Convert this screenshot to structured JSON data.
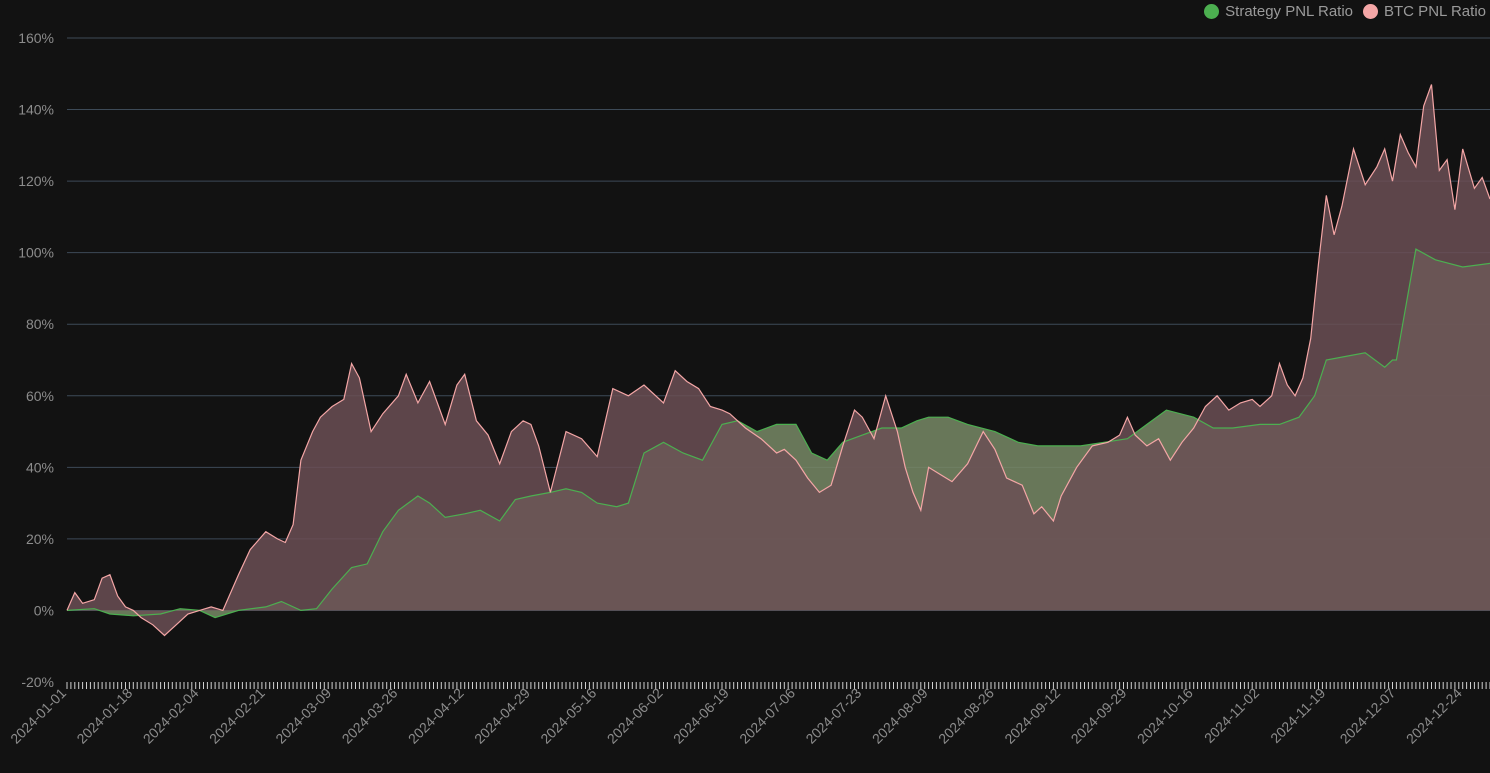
{
  "chart_data": {
    "type": "area",
    "title": "",
    "xlabel": "",
    "ylabel": "",
    "ylim": [
      -20,
      160
    ],
    "y_ticks": [
      -20,
      0,
      20,
      40,
      60,
      80,
      100,
      120,
      140,
      160
    ],
    "y_tick_labels": [
      "-20%",
      "0%",
      "20%",
      "40%",
      "60%",
      "80%",
      "100%",
      "120%",
      "140%",
      "160%"
    ],
    "x_range": [
      "2024-01-01",
      "2024-12-31"
    ],
    "x_tick_labels": [
      "2024-01-01",
      "2024-01-18",
      "2024-02-04",
      "2024-02-21",
      "2024-03-09",
      "2024-03-26",
      "2024-04-12",
      "2024-04-29",
      "2024-05-16",
      "2024-06-02",
      "2024-06-19",
      "2024-07-06",
      "2024-07-23",
      "2024-08-09",
      "2024-08-26",
      "2024-09-12",
      "2024-09-29",
      "2024-10-16",
      "2024-11-02",
      "2024-11-19",
      "2024-12-07",
      "2024-12-24"
    ],
    "grid": true,
    "legend_position": "top-right",
    "background": "#121212",
    "series": [
      {
        "name": "Strategy PNL Ratio",
        "color": "#4caf50",
        "fill": "#788a66",
        "x": [
          "2024-01-01",
          "2024-01-08",
          "2024-01-12",
          "2024-01-18",
          "2024-01-25",
          "2024-01-30",
          "2024-02-04",
          "2024-02-08",
          "2024-02-14",
          "2024-02-21",
          "2024-02-25",
          "2024-03-01",
          "2024-03-05",
          "2024-03-09",
          "2024-03-14",
          "2024-03-18",
          "2024-03-22",
          "2024-03-26",
          "2024-03-31",
          "2024-04-03",
          "2024-04-07",
          "2024-04-12",
          "2024-04-16",
          "2024-04-21",
          "2024-04-25",
          "2024-04-29",
          "2024-05-04",
          "2024-05-08",
          "2024-05-12",
          "2024-05-16",
          "2024-05-21",
          "2024-05-24",
          "2024-05-28",
          "2024-06-02",
          "2024-06-07",
          "2024-06-12",
          "2024-06-17",
          "2024-06-21",
          "2024-06-26",
          "2024-07-01",
          "2024-07-06",
          "2024-07-10",
          "2024-07-14",
          "2024-07-18",
          "2024-07-23",
          "2024-07-28",
          "2024-08-02",
          "2024-08-06",
          "2024-08-09",
          "2024-08-14",
          "2024-08-19",
          "2024-08-26",
          "2024-09-01",
          "2024-09-06",
          "2024-09-12",
          "2024-09-17",
          "2024-09-23",
          "2024-09-29",
          "2024-10-04",
          "2024-10-09",
          "2024-10-16",
          "2024-10-21",
          "2024-10-26",
          "2024-11-02",
          "2024-11-07",
          "2024-11-12",
          "2024-11-16",
          "2024-11-19",
          "2024-11-24",
          "2024-11-29",
          "2024-12-04",
          "2024-12-06",
          "2024-12-07",
          "2024-12-12",
          "2024-12-17",
          "2024-12-24",
          "2024-12-31"
        ],
        "values": [
          0,
          0.5,
          -1,
          -1.5,
          -1,
          0.5,
          0,
          -2,
          0,
          1,
          2.5,
          0,
          0.5,
          6,
          12,
          13,
          22,
          28,
          32,
          30,
          26,
          27,
          28,
          25,
          31,
          32,
          33,
          34,
          33,
          30,
          29,
          30,
          44,
          47,
          44,
          42,
          52,
          53,
          50,
          52,
          52,
          44,
          42,
          47,
          49,
          51,
          51,
          53,
          54,
          54,
          52,
          50,
          47,
          46,
          46,
          46,
          47,
          48,
          52,
          56,
          54,
          51,
          51,
          52,
          52,
          54,
          60,
          70,
          71,
          72,
          68,
          70,
          70,
          101,
          98,
          96,
          97
        ]
      },
      {
        "name": "BTC PNL Ratio",
        "color": "#f4a6a6",
        "fill": "#6b4f55",
        "x": [
          "2024-01-01",
          "2024-01-03",
          "2024-01-05",
          "2024-01-08",
          "2024-01-10",
          "2024-01-12",
          "2024-01-14",
          "2024-01-16",
          "2024-01-18",
          "2024-01-20",
          "2024-01-23",
          "2024-01-26",
          "2024-01-29",
          "2024-02-01",
          "2024-02-04",
          "2024-02-07",
          "2024-02-10",
          "2024-02-14",
          "2024-02-17",
          "2024-02-21",
          "2024-02-24",
          "2024-02-26",
          "2024-02-28",
          "2024-03-01",
          "2024-03-04",
          "2024-03-06",
          "2024-03-09",
          "2024-03-12",
          "2024-03-14",
          "2024-03-16",
          "2024-03-19",
          "2024-03-22",
          "2024-03-26",
          "2024-03-28",
          "2024-03-31",
          "2024-04-03",
          "2024-04-07",
          "2024-04-10",
          "2024-04-12",
          "2024-04-15",
          "2024-04-18",
          "2024-04-21",
          "2024-04-24",
          "2024-04-27",
          "2024-04-29",
          "2024-05-01",
          "2024-05-04",
          "2024-05-08",
          "2024-05-12",
          "2024-05-16",
          "2024-05-20",
          "2024-05-24",
          "2024-05-28",
          "2024-06-02",
          "2024-06-05",
          "2024-06-08",
          "2024-06-11",
          "2024-06-14",
          "2024-06-17",
          "2024-06-19",
          "2024-06-23",
          "2024-06-27",
          "2024-07-01",
          "2024-07-03",
          "2024-07-06",
          "2024-07-09",
          "2024-07-12",
          "2024-07-15",
          "2024-07-18",
          "2024-07-21",
          "2024-07-23",
          "2024-07-26",
          "2024-07-29",
          "2024-08-01",
          "2024-08-03",
          "2024-08-05",
          "2024-08-07",
          "2024-08-09",
          "2024-08-12",
          "2024-08-15",
          "2024-08-19",
          "2024-08-23",
          "2024-08-26",
          "2024-08-29",
          "2024-09-02",
          "2024-09-05",
          "2024-09-07",
          "2024-09-10",
          "2024-09-12",
          "2024-09-16",
          "2024-09-20",
          "2024-09-24",
          "2024-09-27",
          "2024-09-29",
          "2024-10-01",
          "2024-10-04",
          "2024-10-07",
          "2024-10-10",
          "2024-10-13",
          "2024-10-16",
          "2024-10-19",
          "2024-10-22",
          "2024-10-25",
          "2024-10-28",
          "2024-10-31",
          "2024-11-02",
          "2024-11-05",
          "2024-11-07",
          "2024-11-09",
          "2024-11-11",
          "2024-11-13",
          "2024-11-15",
          "2024-11-17",
          "2024-11-19",
          "2024-11-21",
          "2024-11-23",
          "2024-11-26",
          "2024-11-29",
          "2024-12-02",
          "2024-12-04",
          "2024-12-06",
          "2024-12-08",
          "2024-12-10",
          "2024-12-12",
          "2024-12-14",
          "2024-12-16",
          "2024-12-18",
          "2024-12-20",
          "2024-12-22",
          "2024-12-24",
          "2024-12-27",
          "2024-12-29",
          "2024-12-31"
        ],
        "values": [
          0,
          5,
          2,
          3,
          9,
          10,
          4,
          1,
          0,
          -2,
          -4,
          -7,
          -4,
          -1,
          0,
          1,
          0,
          10,
          17,
          22,
          20,
          19,
          24,
          42,
          50,
          54,
          57,
          59,
          69,
          65,
          50,
          55,
          60,
          66,
          58,
          64,
          52,
          63,
          66,
          53,
          49,
          41,
          50,
          53,
          52,
          46,
          33,
          50,
          48,
          43,
          62,
          60,
          63,
          58,
          67,
          64,
          62,
          57,
          56,
          55,
          51,
          48,
          44,
          45,
          42,
          37,
          33,
          35,
          46,
          56,
          54,
          48,
          60,
          50,
          40,
          33,
          28,
          40,
          38,
          36,
          41,
          50,
          45,
          37,
          35,
          27,
          29,
          25,
          32,
          40,
          46,
          47,
          49,
          54,
          49,
          46,
          48,
          42,
          47,
          51,
          57,
          60,
          56,
          58,
          59,
          57,
          60,
          69,
          63,
          60,
          65,
          76,
          97,
          116,
          105,
          113,
          129,
          119,
          124,
          129,
          120,
          133,
          128,
          124,
          141,
          147,
          123,
          126,
          112,
          129,
          118,
          121,
          115
        ]
      }
    ]
  }
}
